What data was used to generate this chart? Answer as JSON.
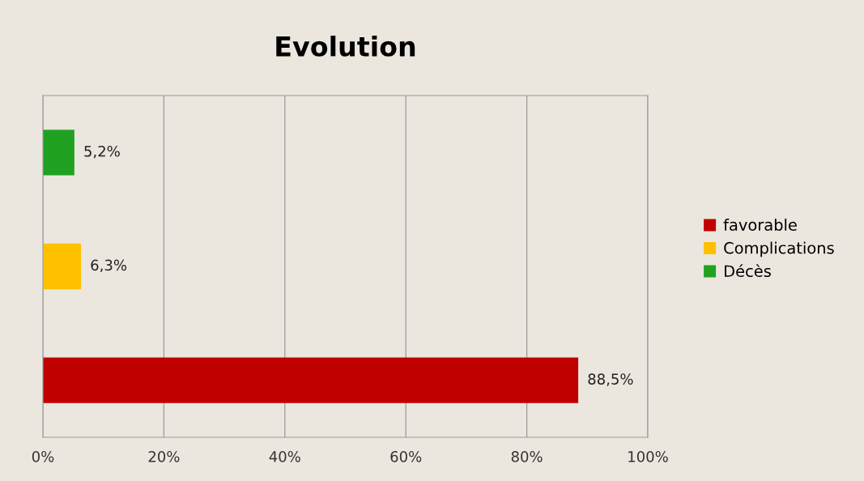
{
  "chart_data": {
    "type": "bar",
    "title": "Evolution",
    "orientation": "horizontal",
    "stacked": true,
    "categories": [
      null,
      null,
      null
    ],
    "series": [
      {
        "name": "favorable",
        "color": "#c00000",
        "values": [
          null,
          null,
          88.5
        ],
        "value_labels": [
          null,
          null,
          "88,5%"
        ]
      },
      {
        "name": "Complications",
        "color": "#ffc000",
        "values": [
          null,
          6.3,
          null
        ],
        "value_labels": [
          null,
          "6,3%",
          null
        ]
      },
      {
        "name": "Décès",
        "color": "#21a121",
        "values": [
          5.2,
          null,
          null
        ],
        "value_labels": [
          "5,2%",
          null,
          null
        ]
      }
    ],
    "xlim": [
      0,
      100
    ],
    "xticks": [
      {
        "value": 0,
        "label": "0%"
      },
      {
        "value": 20,
        "label": "20%"
      },
      {
        "value": 40,
        "label": "40%"
      },
      {
        "value": 60,
        "label": "60%"
      },
      {
        "value": 80,
        "label": "80%"
      },
      {
        "value": 100,
        "label": "100%"
      }
    ],
    "grid": "x",
    "legend": "right"
  }
}
